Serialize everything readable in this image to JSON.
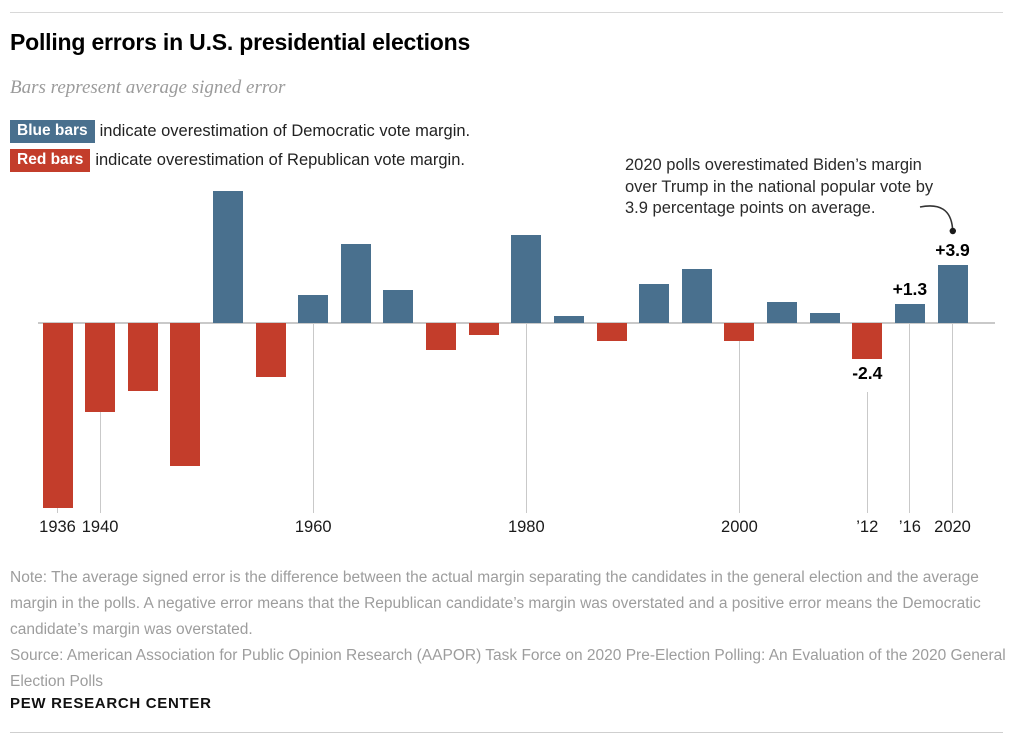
{
  "header": {
    "title": "Polling errors in U.S. presidential elections",
    "subtitle": "Bars represent average signed error"
  },
  "legend": [
    {
      "chip_label": "Blue bars",
      "chip_color": "#49708e",
      "text": "indicate overestimation of Democratic vote margin."
    },
    {
      "chip_label": "Red bars",
      "chip_color": "#c33d2b",
      "text": "indicate overestimation of Republican vote margin."
    }
  ],
  "annotation": {
    "lines": [
      "2020 polls overestimated Biden’s margin",
      "over Trump in the national popular vote by",
      "3.9 percentage points on average."
    ]
  },
  "chart_data": {
    "type": "bar",
    "title": "Polling errors in U.S. presidential elections",
    "subtitle": "Bars represent average signed error",
    "unit": "percentage points (average signed error)",
    "categories": [
      1936,
      1940,
      1944,
      1948,
      1952,
      1956,
      1960,
      1964,
      1968,
      1972,
      1976,
      1980,
      1984,
      1988,
      1992,
      1996,
      2000,
      2004,
      2008,
      2012,
      2016,
      2020
    ],
    "values": [
      -12.3,
      -5.9,
      -4.5,
      -9.5,
      8.8,
      -3.6,
      1.9,
      5.3,
      2.2,
      -1.8,
      -0.8,
      5.9,
      0.5,
      -1.2,
      2.6,
      3.6,
      -1.2,
      1.4,
      0.7,
      -2.4,
      1.3,
      3.9
    ],
    "bar_labels": {
      "2012": "-2.4",
      "2016": "+1.3",
      "2020": "+3.9"
    },
    "tick_years": [
      1936,
      1940,
      1960,
      1980,
      2000,
      2012,
      2016,
      2020
    ],
    "axis_tick_labels": [
      "1936",
      "1940",
      "1960",
      "1980",
      "2000",
      "’12",
      "’16",
      "2020"
    ],
    "annotation": "2020 polls overestimated Biden’s margin over Trump in the national popular vote by 3.9 percentage points on average.",
    "colors": {
      "positive_blue": "#49708e",
      "negative_red": "#c33d2b",
      "axis": "#c9c9c9"
    },
    "ylim": [
      -13,
      9.5
    ],
    "grid": false,
    "y_axis_visible": false,
    "legend_position": "top-left"
  },
  "footer": {
    "note": "Note: The average signed error is the difference between the actual margin separating the candidates in the general election and the average margin in the polls. A negative error means that the Republican candidate’s margin was overstated and a positive error means the Democratic candidate’s margin was overstated.",
    "source": "Source: American Association for Public Opinion Research (AAPOR) Task Force on 2020 Pre-Election Polling: An Evaluation of the 2020 General Election Polls",
    "brand": "PEW RESEARCH CENTER"
  }
}
